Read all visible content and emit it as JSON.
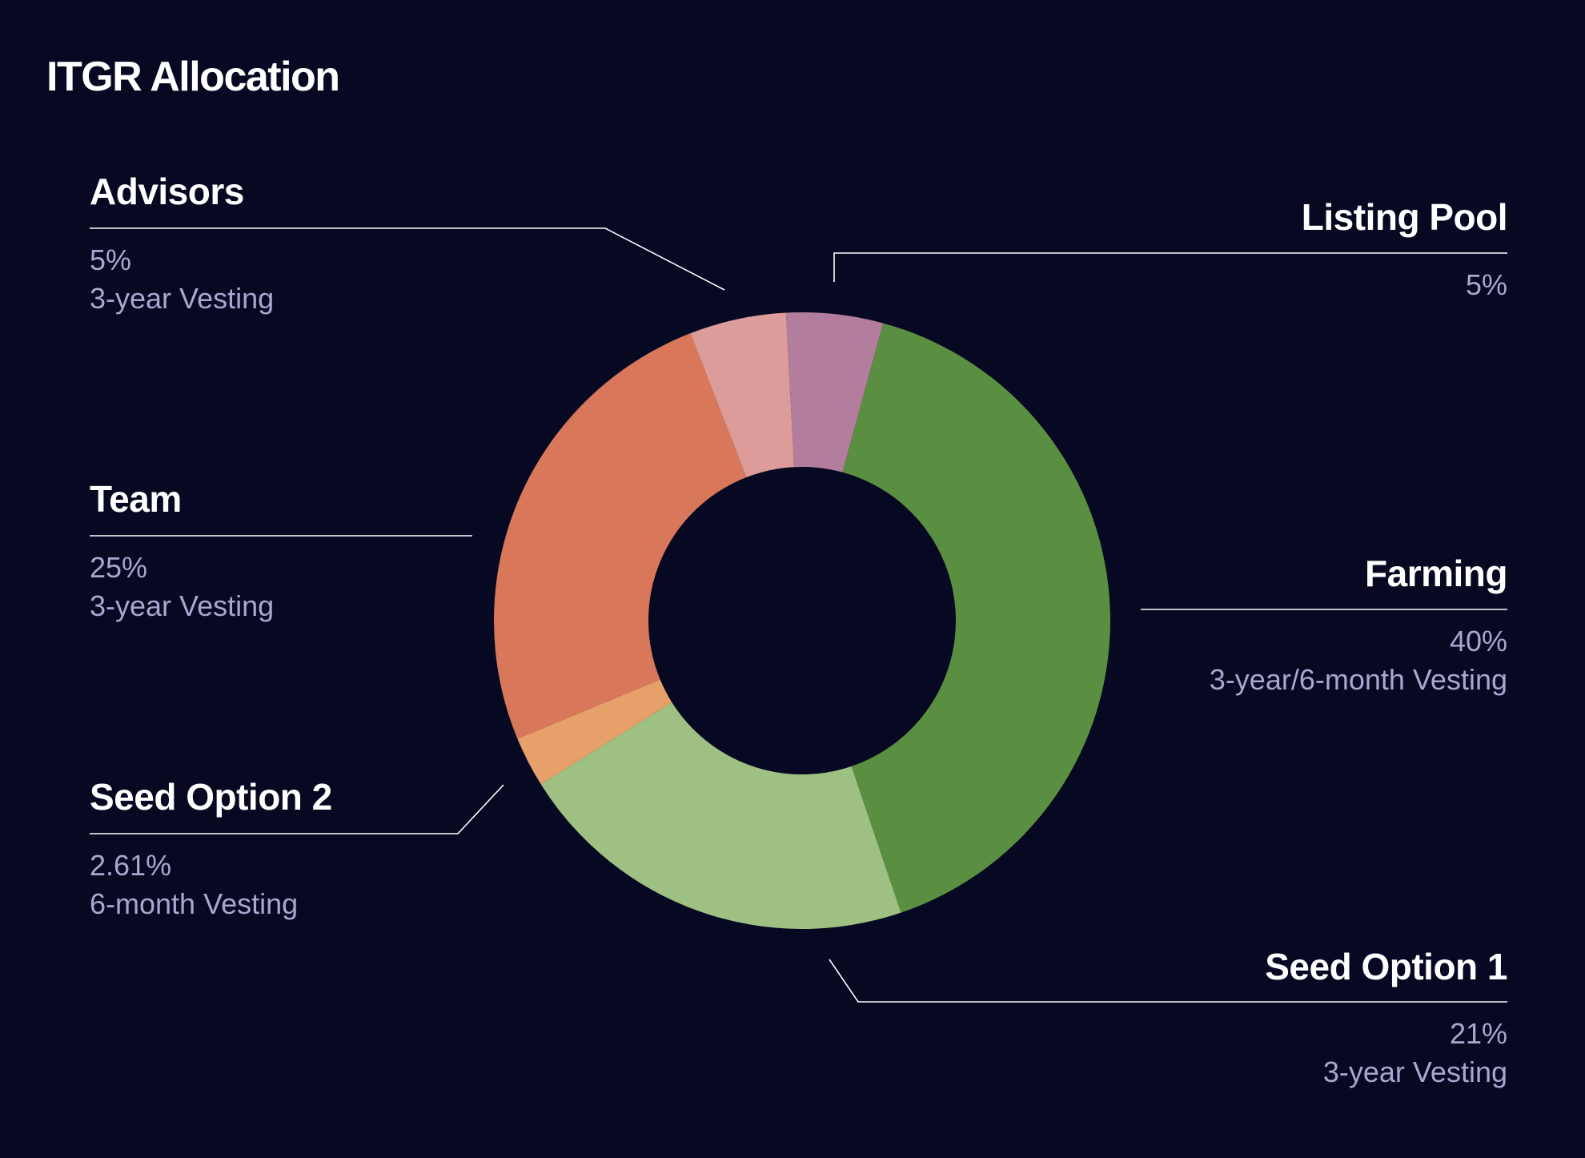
{
  "chart_data": {
    "type": "pie",
    "variant": "donut",
    "title": "ITGR Allocation",
    "slices": [
      {
        "label": "Listing Pool",
        "value": 5,
        "display_value": "5%",
        "note": "",
        "color": "#b37d9e"
      },
      {
        "label": "Farming",
        "value": 40,
        "display_value": "40%",
        "note": "3-year/6-month Vesting",
        "color": "#5a8e40"
      },
      {
        "label": "Seed Option 1",
        "value": 21,
        "display_value": "21%",
        "note": "3-year Vesting",
        "color": "#9ec183"
      },
      {
        "label": "Seed Option 2",
        "value": 2.61,
        "display_value": "2.61%",
        "note": "6-month Vesting",
        "color": "#e8a06a"
      },
      {
        "label": "Team",
        "value": 25,
        "display_value": "25%",
        "note": "3-year Vesting",
        "color": "#d9775a"
      },
      {
        "label": "Advisors",
        "value": 5,
        "display_value": "5%",
        "note": "3-year Vesting",
        "color": "#dc9c9a"
      }
    ],
    "legend": "none",
    "background": "#070822"
  }
}
